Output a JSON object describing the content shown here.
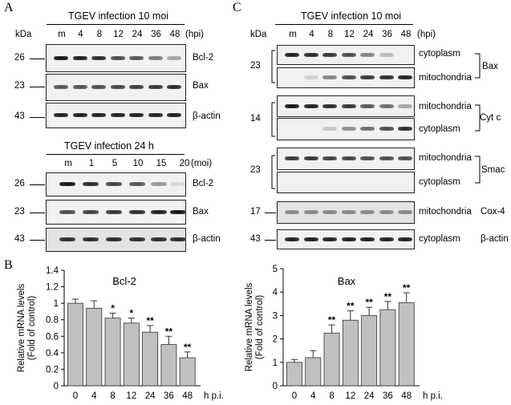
{
  "panel_labels": {
    "a": "A",
    "b": "B",
    "c": "C"
  },
  "kda": "kDa",
  "hpi": "(hpi)",
  "moi": "(moi)",
  "panel_a": {
    "top_title": "TGEV infection 10 moi",
    "top_lanes": [
      "m",
      "4",
      "8",
      "12",
      "24",
      "36",
      "48"
    ],
    "top_rows": [
      {
        "kda": "26",
        "label": "Bcl-2"
      },
      {
        "kda": "23",
        "label": "Bax"
      },
      {
        "kda": "43",
        "label": "β-actin"
      }
    ],
    "bottom_title": "TGEV infection 24 h",
    "bottom_lanes": [
      "m",
      "1",
      "5",
      "10",
      "15",
      "20"
    ],
    "bottom_rows": [
      {
        "kda": "26",
        "label": "Bcl-2"
      },
      {
        "kda": "23",
        "label": "Bax"
      },
      {
        "kda": "43",
        "label": "β-actin"
      }
    ]
  },
  "panel_c": {
    "title": "TGEV infection 10 moi",
    "lanes": [
      "m",
      "4",
      "8",
      "12",
      "24",
      "36",
      "48"
    ],
    "rows": [
      {
        "label": "cytoplasm"
      },
      {
        "label": "mitochondria"
      },
      {
        "label": "mitochondria"
      },
      {
        "label": "cytoplasm"
      },
      {
        "label": "mitochondria"
      },
      {
        "label": "cytoplasm"
      },
      {
        "label": "mitochondria"
      },
      {
        "label": "cytoplasm"
      }
    ],
    "groups": [
      {
        "kda": "23",
        "protein": "Bax"
      },
      {
        "kda": "14",
        "protein": "Cyt c"
      },
      {
        "kda": "23",
        "protein": "Smac"
      },
      {
        "kda": "17",
        "protein": "Cox-4"
      },
      {
        "kda": "43",
        "protein": "β-actin"
      }
    ]
  },
  "chart_data": [
    {
      "type": "bar",
      "title": "Bcl-2",
      "categories": [
        "0",
        "4",
        "8",
        "12",
        "24",
        "36",
        "48"
      ],
      "values": [
        1.0,
        0.94,
        0.82,
        0.76,
        0.65,
        0.5,
        0.34
      ],
      "errors": [
        0.05,
        0.09,
        0.06,
        0.06,
        0.08,
        0.1,
        0.07
      ],
      "significance": [
        "",
        "",
        "*",
        "*",
        "**",
        "**",
        "**"
      ],
      "ylabel": "Relative mRNA levels (Fold of control)",
      "ylabel_lines": [
        "Relative mRNA levels",
        "(Fold of control)"
      ],
      "xlabel": "h p.i.",
      "ylim": [
        0,
        1.4
      ],
      "yticks": [
        "0",
        "0.2",
        "0.4",
        "0.6",
        "0.8",
        "1",
        "1.2",
        "1.4"
      ]
    },
    {
      "type": "bar",
      "title": "Bax",
      "categories": [
        "0",
        "4",
        "8",
        "12",
        "24",
        "36",
        "48"
      ],
      "values": [
        1.0,
        1.2,
        2.25,
        2.8,
        3.0,
        3.25,
        3.55
      ],
      "errors": [
        0.12,
        0.3,
        0.35,
        0.4,
        0.35,
        0.35,
        0.42
      ],
      "significance": [
        "",
        "",
        "**",
        "**",
        "**",
        "**",
        "**"
      ],
      "ylabel": "Relative mRNA levels (Fold of control)",
      "ylabel_lines": [
        "Relative mRNA levels",
        "(Fold of control)"
      ],
      "xlabel": "h p.i.",
      "ylim": [
        0,
        5
      ],
      "yticks": [
        "0",
        "1",
        "2",
        "3",
        "4",
        "5"
      ]
    }
  ]
}
